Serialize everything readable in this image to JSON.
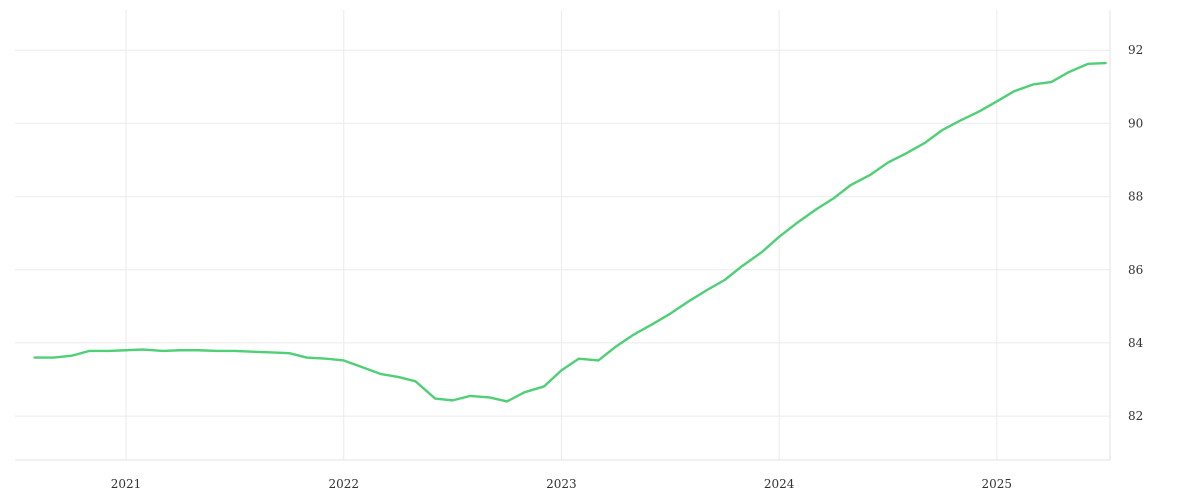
{
  "chart_data": {
    "type": "line",
    "title": "",
    "xlabel": "",
    "ylabel": "",
    "x_tick_labels": [
      "2021",
      "2022",
      "2023",
      "2024",
      "2025"
    ],
    "x_tick_values": [
      2021.0,
      2022.0,
      2023.0,
      2024.0,
      2025.0
    ],
    "y_tick_labels": [
      "92",
      "90",
      "88",
      "86",
      "84",
      "82"
    ],
    "y_tick_values": [
      92,
      90,
      88,
      86,
      84,
      82
    ],
    "xlim": [
      2020.49,
      2025.52
    ],
    "ylim": [
      80.8,
      93.1
    ],
    "grid": true,
    "y_axis_position": "right",
    "colors": {
      "series": "#4fcf76"
    },
    "series": [
      {
        "x": [
          2020.58,
          2020.67,
          2020.75,
          2020.83,
          2020.92,
          2021.0,
          2021.08,
          2021.17,
          2021.25,
          2021.33,
          2021.42,
          2021.5,
          2021.58,
          2021.67,
          2021.75,
          2021.83,
          2021.92,
          2022.0,
          2022.08,
          2022.17,
          2022.25,
          2022.33,
          2022.42,
          2022.5,
          2022.58,
          2022.67,
          2022.75,
          2022.83,
          2022.92,
          2023.0,
          2023.08,
          2023.17,
          2023.25,
          2023.33,
          2023.42,
          2023.5,
          2023.58,
          2023.67,
          2023.75,
          2023.83,
          2023.92,
          2024.0,
          2024.08,
          2024.17,
          2024.25,
          2024.33,
          2024.42,
          2024.5,
          2024.58,
          2024.67,
          2024.75,
          2024.83,
          2024.92,
          2025.0,
          2025.08,
          2025.17,
          2025.25,
          2025.33,
          2025.42,
          2025.5
        ],
        "values": [
          83.6,
          83.6,
          83.65,
          83.78,
          83.78,
          83.8,
          83.82,
          83.78,
          83.8,
          83.8,
          83.78,
          83.78,
          83.76,
          83.74,
          83.72,
          83.6,
          83.57,
          83.52,
          83.35,
          83.15,
          83.07,
          82.95,
          82.48,
          82.43,
          82.55,
          82.51,
          82.4,
          82.65,
          82.81,
          83.25,
          83.57,
          83.52,
          83.9,
          84.22,
          84.52,
          84.8,
          85.12,
          85.45,
          85.72,
          86.1,
          86.48,
          86.9,
          87.27,
          87.65,
          87.95,
          88.32,
          88.6,
          88.93,
          89.17,
          89.47,
          89.82,
          90.07,
          90.33,
          90.6,
          90.88,
          91.07,
          91.13,
          91.4,
          91.63,
          91.65
        ]
      }
    ]
  }
}
